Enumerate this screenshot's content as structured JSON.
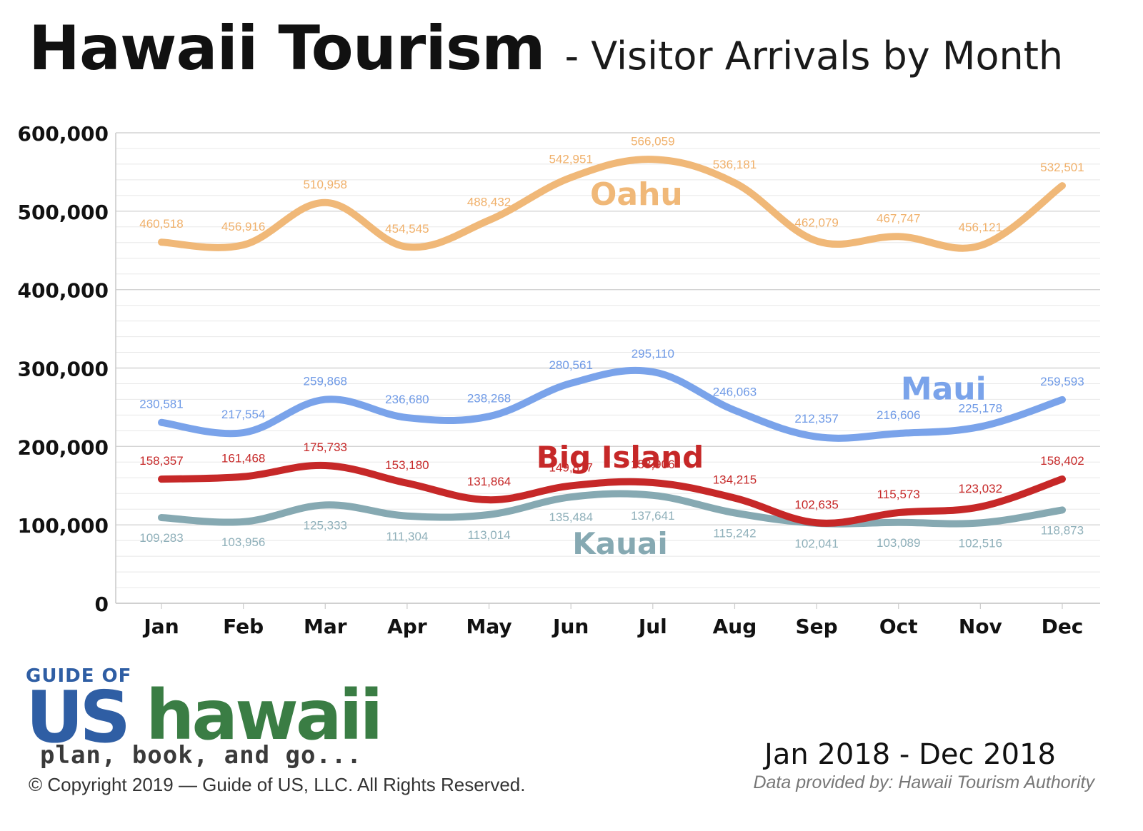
{
  "header": {
    "title": "Hawaii Tourism",
    "subtitle": "- Visitor Arrivals by Month"
  },
  "chart_data": {
    "type": "line",
    "categories": [
      "Jan",
      "Feb",
      "Mar",
      "Apr",
      "May",
      "Jun",
      "Jul",
      "Aug",
      "Sep",
      "Oct",
      "Nov",
      "Dec"
    ],
    "ylim": [
      0,
      600000
    ],
    "yticks": [
      0,
      100000,
      200000,
      300000,
      400000,
      500000,
      600000
    ],
    "ytick_labels": [
      "0",
      "100,000",
      "200,000",
      "300,000",
      "400,000",
      "500,000",
      "600,000"
    ],
    "grid": true,
    "series": [
      {
        "name": "Oahu",
        "color": "#f0b878",
        "label_color": "#f0b06a",
        "values": [
          460518,
          456916,
          510958,
          454545,
          488432,
          542951,
          566059,
          536181,
          462079,
          467747,
          456121,
          532501
        ],
        "value_labels": [
          "460,518",
          "456,916",
          "510,958",
          "454,545",
          "488,432",
          "542,951",
          "566,059",
          "536,181",
          "462,079",
          "467,747",
          "456,121",
          "532,501"
        ]
      },
      {
        "name": "Maui",
        "color": "#7aa3ea",
        "label_color": "#6f9ae6",
        "values": [
          230581,
          217554,
          259868,
          236680,
          238268,
          280561,
          295110,
          246063,
          212357,
          216606,
          225178,
          259593
        ],
        "value_labels": [
          "230,581",
          "217,554",
          "259,868",
          "236,680",
          "238,268",
          "280,561",
          "295,110",
          "246,063",
          "212,357",
          "216,606",
          "225,178",
          "259,593"
        ]
      },
      {
        "name": "Big Island",
        "color": "#c62828",
        "label_color": "#c62828",
        "values": [
          158357,
          161468,
          175733,
          153180,
          131864,
          149817,
          153906,
          134215,
          102635,
          115573,
          123032,
          158402
        ],
        "value_labels": [
          "158,357",
          "161,468",
          "175,733",
          "153,180",
          "131,864",
          "149,817",
          "153,906",
          "134,215",
          "102,635",
          "115,573",
          "123,032",
          "158,402"
        ]
      },
      {
        "name": "Kauai",
        "color": "#86a9b2",
        "label_color": "#8fb0ba",
        "values": [
          109283,
          103956,
          125333,
          111304,
          113014,
          135484,
          137641,
          115242,
          102041,
          103089,
          102516,
          118873
        ],
        "value_labels": [
          "109,283",
          "103,956",
          "125,333",
          "111,304",
          "113,014",
          "135,484",
          "137,641",
          "115,242",
          "102,041",
          "103,089",
          "102,516",
          "118,873"
        ]
      }
    ]
  },
  "logo": {
    "top_text": "GUIDE OF",
    "us_text": "US",
    "hawaii_text": "hawaii",
    "tagline": "plan, book, and go..."
  },
  "footer": {
    "copyright": "© Copyright 2019 — Guide of US, LLC. All Rights Reserved.",
    "period": "Jan 2018 - Dec 2018",
    "source": "Data provided by: Hawaii Tourism Authority"
  }
}
